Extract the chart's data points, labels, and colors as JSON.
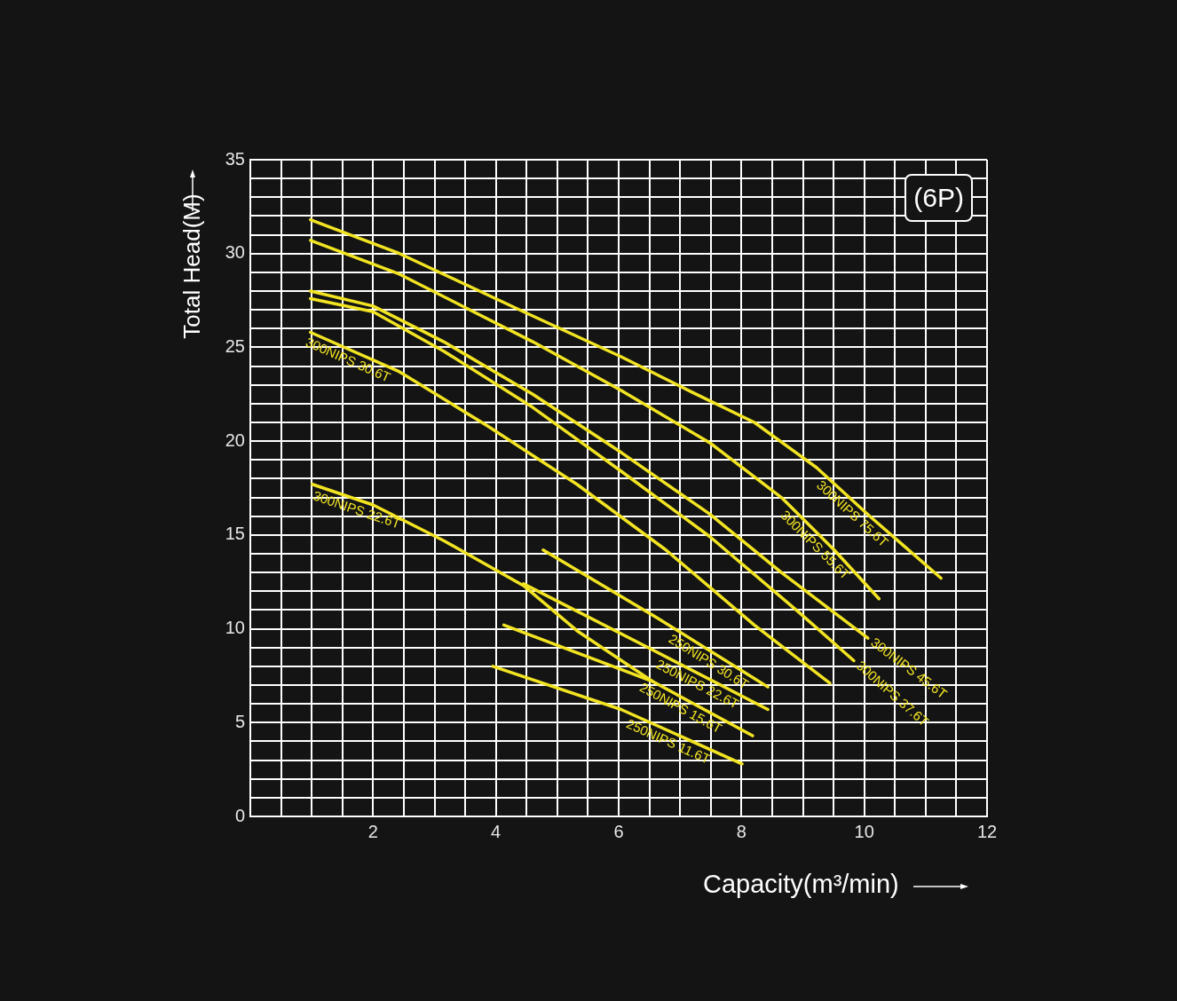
{
  "chart_data": {
    "type": "line",
    "xlabel": "Capacity(m³/min)",
    "ylabel": "Total Head(M)",
    "annotations": [
      "(6P)"
    ],
    "xlim": [
      0,
      12
    ],
    "ylim": [
      0,
      35
    ],
    "xticks": [
      {
        "value": 0,
        "label": null
      },
      {
        "value": 0.5,
        "label": null
      },
      {
        "value": 1,
        "label": null
      },
      {
        "value": 1.5,
        "label": null
      },
      2,
      {
        "value": 2.5,
        "label": null
      },
      {
        "value": 3,
        "label": null
      },
      {
        "value": 3.5,
        "label": null
      },
      4,
      {
        "value": 4.5,
        "label": null
      },
      {
        "value": 5,
        "label": null
      },
      {
        "value": 5.5,
        "label": null
      },
      6,
      {
        "value": 6.5,
        "label": null
      },
      {
        "value": 7,
        "label": null
      },
      {
        "value": 7.5,
        "label": null
      },
      8,
      {
        "value": 8.5,
        "label": null
      },
      {
        "value": 9,
        "label": null
      },
      {
        "value": 9.5,
        "label": null
      },
      10,
      {
        "value": 10.5,
        "label": null
      },
      {
        "value": 11,
        "label": null
      },
      {
        "value": 11.5,
        "label": null
      },
      12
    ],
    "yticks": [
      0,
      {
        "value": 1,
        "label": null
      },
      {
        "value": 2,
        "label": null
      },
      {
        "value": 3,
        "label": null
      },
      {
        "value": 4,
        "label": null
      },
      5,
      {
        "value": 6,
        "label": null
      },
      {
        "value": 7,
        "label": null
      },
      {
        "value": 8,
        "label": null
      },
      {
        "value": 9,
        "label": null
      },
      10,
      {
        "value": 11,
        "label": null
      },
      {
        "value": 12,
        "label": null
      },
      {
        "value": 13,
        "label": null
      },
      {
        "value": 14,
        "label": null
      },
      15,
      {
        "value": 16,
        "label": null
      },
      {
        "value": 17,
        "label": null
      },
      {
        "value": 18,
        "label": null
      },
      {
        "value": 19,
        "label": null
      },
      20,
      {
        "value": 21,
        "label": null
      },
      {
        "value": 22,
        "label": null
      },
      {
        "value": 23,
        "label": null
      },
      {
        "value": 24,
        "label": null
      },
      25,
      {
        "value": 26,
        "label": null
      },
      {
        "value": 27,
        "label": null
      },
      {
        "value": 28,
        "label": null
      },
      {
        "value": 29,
        "label": null
      },
      30,
      {
        "value": 31,
        "label": null
      },
      {
        "value": 32,
        "label": null
      },
      {
        "value": 33,
        "label": null
      },
      {
        "value": 34,
        "label": null
      },
      35
    ],
    "grid": true,
    "marker": "none",
    "line_style": "solid",
    "series": [
      {
        "name": "300NIPS 75.6T",
        "color": "#f2e422",
        "x": [
          0.98,
          2.43,
          4.45,
          6.04,
          7.2,
          8.21,
          9.22,
          10.09,
          11.25
        ],
        "values": [
          31.8,
          30.0,
          26.9,
          24.5,
          22.6,
          21.0,
          18.6,
          16.0,
          12.7
        ]
      },
      {
        "name": "300NIPS 55.6T",
        "color": "#f2e422",
        "x": [
          0.98,
          2.43,
          4.6,
          6.04,
          7.49,
          8.65,
          9.51,
          10.24
        ],
        "values": [
          30.7,
          28.9,
          25.3,
          22.7,
          19.9,
          17.0,
          14.2,
          11.6
        ]
      },
      {
        "name": "300NIPS 45.6T",
        "color": "#f2e422",
        "x": [
          0.98,
          2.0,
          3.15,
          4.6,
          6.04,
          7.49,
          8.65,
          10.06
        ],
        "values": [
          28.0,
          27.2,
          25.3,
          22.5,
          19.4,
          16.1,
          13.0,
          9.5
        ]
      },
      {
        "name": "300NIPS 37.6T",
        "color": "#f2e422",
        "x": [
          0.98,
          2.0,
          3.15,
          4.6,
          6.04,
          7.49,
          8.93,
          9.83
        ],
        "values": [
          27.6,
          26.9,
          24.8,
          21.8,
          18.4,
          14.9,
          10.9,
          8.3
        ]
      },
      {
        "name": "300NIPS 30.6T",
        "color": "#f2e422",
        "x": [
          0.98,
          2.43,
          3.87,
          5.32,
          6.77,
          8.21,
          9.44
        ],
        "values": [
          25.8,
          23.7,
          20.8,
          17.7,
          14.2,
          10.2,
          7.1
        ]
      },
      {
        "name": "300NIPS 22.6T",
        "color": "#f2e422",
        "x": [
          1.01,
          2.0,
          3.15,
          4.45,
          5.32,
          6.55
        ],
        "values": [
          17.7,
          16.6,
          14.7,
          12.3,
          9.9,
          7.2
        ]
      },
      {
        "name": "250NIPS 30.6T",
        "color": "#f2e422",
        "x": [
          4.77,
          6.62,
          8.43
        ],
        "values": [
          14.2,
          10.6,
          6.9
        ]
      },
      {
        "name": "250NIPS 22.6T",
        "color": "#f2e422",
        "x": [
          4.45,
          6.48,
          8.43
        ],
        "values": [
          12.4,
          9.0,
          5.7
        ]
      },
      {
        "name": "250NIPS 15.6T",
        "color": "#f2e422",
        "x": [
          4.13,
          6.55,
          8.18
        ],
        "values": [
          10.2,
          7.2,
          4.3
        ]
      },
      {
        "name": "250NIPS 11.6T",
        "color": "#f2e422",
        "x": [
          3.95,
          6.04,
          8.01
        ],
        "values": [
          8.0,
          5.7,
          2.8
        ]
      }
    ]
  }
}
